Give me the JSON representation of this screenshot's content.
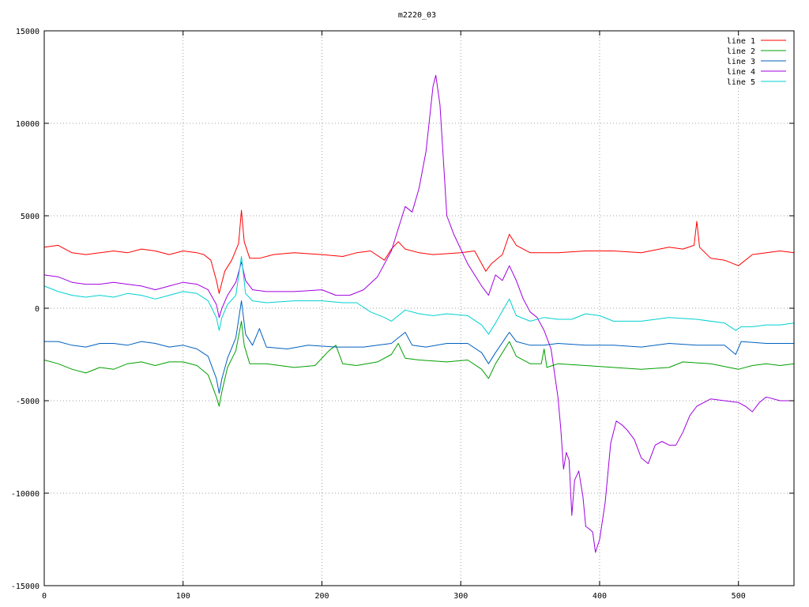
{
  "chart_data": {
    "type": "line",
    "title": "m2220_03",
    "xlabel": "",
    "ylabel": "",
    "xlim": [
      0,
      540
    ],
    "ylim": [
      -15000,
      15000
    ],
    "x_ticks": [
      0,
      100,
      200,
      300,
      400,
      500
    ],
    "y_ticks": [
      -15000,
      -10000,
      -5000,
      0,
      5000,
      10000,
      15000
    ],
    "grid": true,
    "legend_position": "top-right",
    "series": [
      {
        "name": "line 1",
        "color": "#ff0000",
        "points": [
          [
            0,
            3300
          ],
          [
            10,
            3400
          ],
          [
            20,
            3000
          ],
          [
            30,
            2900
          ],
          [
            40,
            3000
          ],
          [
            50,
            3100
          ],
          [
            60,
            3000
          ],
          [
            70,
            3200
          ],
          [
            80,
            3100
          ],
          [
            90,
            2900
          ],
          [
            100,
            3100
          ],
          [
            110,
            3000
          ],
          [
            115,
            2900
          ],
          [
            120,
            2600
          ],
          [
            124,
            1500
          ],
          [
            126,
            800
          ],
          [
            128,
            1400
          ],
          [
            130,
            2000
          ],
          [
            135,
            2600
          ],
          [
            140,
            3500
          ],
          [
            142,
            5300
          ],
          [
            144,
            3600
          ],
          [
            148,
            2700
          ],
          [
            155,
            2700
          ],
          [
            165,
            2900
          ],
          [
            180,
            3000
          ],
          [
            200,
            2900
          ],
          [
            215,
            2800
          ],
          [
            225,
            3000
          ],
          [
            235,
            3100
          ],
          [
            245,
            2600
          ],
          [
            250,
            3200
          ],
          [
            255,
            3600
          ],
          [
            260,
            3200
          ],
          [
            270,
            3000
          ],
          [
            280,
            2900
          ],
          [
            300,
            3000
          ],
          [
            310,
            3100
          ],
          [
            318,
            2000
          ],
          [
            322,
            2400
          ],
          [
            330,
            2900
          ],
          [
            335,
            4000
          ],
          [
            340,
            3400
          ],
          [
            350,
            3000
          ],
          [
            370,
            3000
          ],
          [
            390,
            3100
          ],
          [
            410,
            3100
          ],
          [
            430,
            3000
          ],
          [
            450,
            3300
          ],
          [
            460,
            3200
          ],
          [
            468,
            3400
          ],
          [
            470,
            4700
          ],
          [
            472,
            3300
          ],
          [
            480,
            2700
          ],
          [
            490,
            2600
          ],
          [
            500,
            2300
          ],
          [
            510,
            2900
          ],
          [
            520,
            3000
          ],
          [
            530,
            3100
          ],
          [
            540,
            3000
          ]
        ]
      },
      {
        "name": "line 2",
        "color": "#00a000",
        "points": [
          [
            0,
            -2800
          ],
          [
            10,
            -3000
          ],
          [
            20,
            -3300
          ],
          [
            30,
            -3500
          ],
          [
            40,
            -3200
          ],
          [
            50,
            -3300
          ],
          [
            60,
            -3000
          ],
          [
            70,
            -2900
          ],
          [
            80,
            -3100
          ],
          [
            90,
            -2900
          ],
          [
            100,
            -2900
          ],
          [
            110,
            -3100
          ],
          [
            118,
            -3600
          ],
          [
            124,
            -4800
          ],
          [
            126,
            -5300
          ],
          [
            128,
            -4500
          ],
          [
            132,
            -3200
          ],
          [
            138,
            -2300
          ],
          [
            142,
            -700
          ],
          [
            144,
            -2000
          ],
          [
            148,
            -3000
          ],
          [
            160,
            -3000
          ],
          [
            180,
            -3200
          ],
          [
            195,
            -3100
          ],
          [
            205,
            -2300
          ],
          [
            210,
            -2000
          ],
          [
            215,
            -3000
          ],
          [
            225,
            -3100
          ],
          [
            240,
            -2900
          ],
          [
            250,
            -2500
          ],
          [
            255,
            -1900
          ],
          [
            260,
            -2700
          ],
          [
            270,
            -2800
          ],
          [
            290,
            -2900
          ],
          [
            305,
            -2800
          ],
          [
            315,
            -3300
          ],
          [
            320,
            -3800
          ],
          [
            325,
            -3000
          ],
          [
            335,
            -1800
          ],
          [
            340,
            -2600
          ],
          [
            350,
            -3000
          ],
          [
            358,
            -3000
          ],
          [
            360,
            -2200
          ],
          [
            362,
            -3200
          ],
          [
            370,
            -3000
          ],
          [
            390,
            -3100
          ],
          [
            410,
            -3200
          ],
          [
            430,
            -3300
          ],
          [
            450,
            -3200
          ],
          [
            460,
            -2900
          ],
          [
            480,
            -3000
          ],
          [
            500,
            -3300
          ],
          [
            510,
            -3100
          ],
          [
            520,
            -3000
          ],
          [
            530,
            -3100
          ],
          [
            540,
            -3000
          ]
        ]
      },
      {
        "name": "line 3",
        "color": "#0060c0",
        "points": [
          [
            0,
            -1800
          ],
          [
            10,
            -1800
          ],
          [
            20,
            -2000
          ],
          [
            30,
            -2100
          ],
          [
            40,
            -1900
          ],
          [
            50,
            -1900
          ],
          [
            60,
            -2000
          ],
          [
            70,
            -1800
          ],
          [
            80,
            -1900
          ],
          [
            90,
            -2100
          ],
          [
            100,
            -2000
          ],
          [
            110,
            -2200
          ],
          [
            118,
            -2600
          ],
          [
            124,
            -3800
          ],
          [
            126,
            -4600
          ],
          [
            128,
            -3800
          ],
          [
            132,
            -2700
          ],
          [
            138,
            -1600
          ],
          [
            142,
            400
          ],
          [
            145,
            -1400
          ],
          [
            150,
            -2000
          ],
          [
            155,
            -1100
          ],
          [
            160,
            -2100
          ],
          [
            175,
            -2200
          ],
          [
            190,
            -2000
          ],
          [
            210,
            -2100
          ],
          [
            230,
            -2100
          ],
          [
            240,
            -2000
          ],
          [
            250,
            -1900
          ],
          [
            260,
            -1300
          ],
          [
            265,
            -2000
          ],
          [
            275,
            -2100
          ],
          [
            290,
            -1900
          ],
          [
            305,
            -1900
          ],
          [
            315,
            -2400
          ],
          [
            320,
            -3000
          ],
          [
            325,
            -2400
          ],
          [
            335,
            -1300
          ],
          [
            340,
            -1800
          ],
          [
            350,
            -2000
          ],
          [
            360,
            -2000
          ],
          [
            370,
            -1900
          ],
          [
            390,
            -2000
          ],
          [
            410,
            -2000
          ],
          [
            430,
            -2100
          ],
          [
            450,
            -1900
          ],
          [
            470,
            -2000
          ],
          [
            490,
            -2000
          ],
          [
            498,
            -2500
          ],
          [
            502,
            -1800
          ],
          [
            520,
            -1900
          ],
          [
            530,
            -1900
          ],
          [
            540,
            -1900
          ]
        ]
      },
      {
        "name": "line 4",
        "color": "#a000e0",
        "points": [
          [
            0,
            1800
          ],
          [
            10,
            1700
          ],
          [
            20,
            1400
          ],
          [
            30,
            1300
          ],
          [
            40,
            1300
          ],
          [
            50,
            1400
          ],
          [
            60,
            1300
          ],
          [
            70,
            1200
          ],
          [
            80,
            1000
          ],
          [
            90,
            1200
          ],
          [
            100,
            1400
          ],
          [
            110,
            1300
          ],
          [
            118,
            1000
          ],
          [
            124,
            200
          ],
          [
            126,
            -500
          ],
          [
            128,
            0
          ],
          [
            132,
            700
          ],
          [
            138,
            1400
          ],
          [
            142,
            2500
          ],
          [
            145,
            1500
          ],
          [
            150,
            1000
          ],
          [
            160,
            900
          ],
          [
            180,
            900
          ],
          [
            200,
            1000
          ],
          [
            210,
            700
          ],
          [
            220,
            700
          ],
          [
            230,
            1000
          ],
          [
            240,
            1700
          ],
          [
            250,
            3100
          ],
          [
            255,
            4300
          ],
          [
            260,
            5500
          ],
          [
            265,
            5200
          ],
          [
            270,
            6500
          ],
          [
            275,
            8500
          ],
          [
            280,
            12000
          ],
          [
            282,
            12600
          ],
          [
            285,
            11000
          ],
          [
            290,
            5000
          ],
          [
            295,
            4000
          ],
          [
            300,
            3200
          ],
          [
            305,
            2400
          ],
          [
            310,
            1800
          ],
          [
            315,
            1200
          ],
          [
            320,
            700
          ],
          [
            325,
            1800
          ],
          [
            330,
            1500
          ],
          [
            335,
            2300
          ],
          [
            340,
            1500
          ],
          [
            345,
            500
          ],
          [
            350,
            -200
          ],
          [
            355,
            -500
          ],
          [
            360,
            -1200
          ],
          [
            365,
            -2200
          ],
          [
            370,
            -4800
          ],
          [
            372,
            -6500
          ],
          [
            374,
            -8700
          ],
          [
            376,
            -7800
          ],
          [
            378,
            -8200
          ],
          [
            380,
            -11200
          ],
          [
            382,
            -9300
          ],
          [
            385,
            -8800
          ],
          [
            388,
            -10200
          ],
          [
            390,
            -11800
          ],
          [
            392,
            -11900
          ],
          [
            395,
            -12100
          ],
          [
            397,
            -13200
          ],
          [
            400,
            -12500
          ],
          [
            404,
            -10500
          ],
          [
            408,
            -7300
          ],
          [
            412,
            -6100
          ],
          [
            416,
            -6300
          ],
          [
            420,
            -6600
          ],
          [
            425,
            -7100
          ],
          [
            430,
            -8100
          ],
          [
            435,
            -8400
          ],
          [
            440,
            -7400
          ],
          [
            445,
            -7200
          ],
          [
            450,
            -7400
          ],
          [
            455,
            -7400
          ],
          [
            460,
            -6700
          ],
          [
            465,
            -5800
          ],
          [
            470,
            -5300
          ],
          [
            475,
            -5100
          ],
          [
            480,
            -4900
          ],
          [
            490,
            -5000
          ],
          [
            500,
            -5100
          ],
          [
            505,
            -5300
          ],
          [
            510,
            -5600
          ],
          [
            515,
            -5100
          ],
          [
            520,
            -4800
          ],
          [
            530,
            -5000
          ],
          [
            540,
            -5000
          ]
        ]
      },
      {
        "name": "line 5",
        "color": "#00d0d0",
        "points": [
          [
            0,
            1200
          ],
          [
            10,
            900
          ],
          [
            20,
            700
          ],
          [
            30,
            600
          ],
          [
            40,
            700
          ],
          [
            50,
            600
          ],
          [
            60,
            800
          ],
          [
            70,
            700
          ],
          [
            80,
            500
          ],
          [
            90,
            700
          ],
          [
            100,
            900
          ],
          [
            110,
            800
          ],
          [
            118,
            400
          ],
          [
            124,
            -500
          ],
          [
            126,
            -1200
          ],
          [
            128,
            -500
          ],
          [
            132,
            200
          ],
          [
            138,
            700
          ],
          [
            142,
            2800
          ],
          [
            145,
            800
          ],
          [
            150,
            400
          ],
          [
            160,
            300
          ],
          [
            180,
            400
          ],
          [
            200,
            400
          ],
          [
            215,
            300
          ],
          [
            225,
            300
          ],
          [
            235,
            -200
          ],
          [
            245,
            -500
          ],
          [
            250,
            -700
          ],
          [
            255,
            -400
          ],
          [
            260,
            -100
          ],
          [
            270,
            -300
          ],
          [
            280,
            -400
          ],
          [
            290,
            -300
          ],
          [
            305,
            -400
          ],
          [
            315,
            -900
          ],
          [
            320,
            -1400
          ],
          [
            325,
            -800
          ],
          [
            335,
            500
          ],
          [
            340,
            -400
          ],
          [
            350,
            -700
          ],
          [
            360,
            -500
          ],
          [
            370,
            -600
          ],
          [
            380,
            -600
          ],
          [
            390,
            -300
          ],
          [
            400,
            -400
          ],
          [
            410,
            -700
          ],
          [
            430,
            -700
          ],
          [
            450,
            -500
          ],
          [
            470,
            -600
          ],
          [
            490,
            -800
          ],
          [
            498,
            -1200
          ],
          [
            502,
            -1000
          ],
          [
            510,
            -1000
          ],
          [
            520,
            -900
          ],
          [
            530,
            -900
          ],
          [
            540,
            -800
          ]
        ]
      }
    ]
  }
}
